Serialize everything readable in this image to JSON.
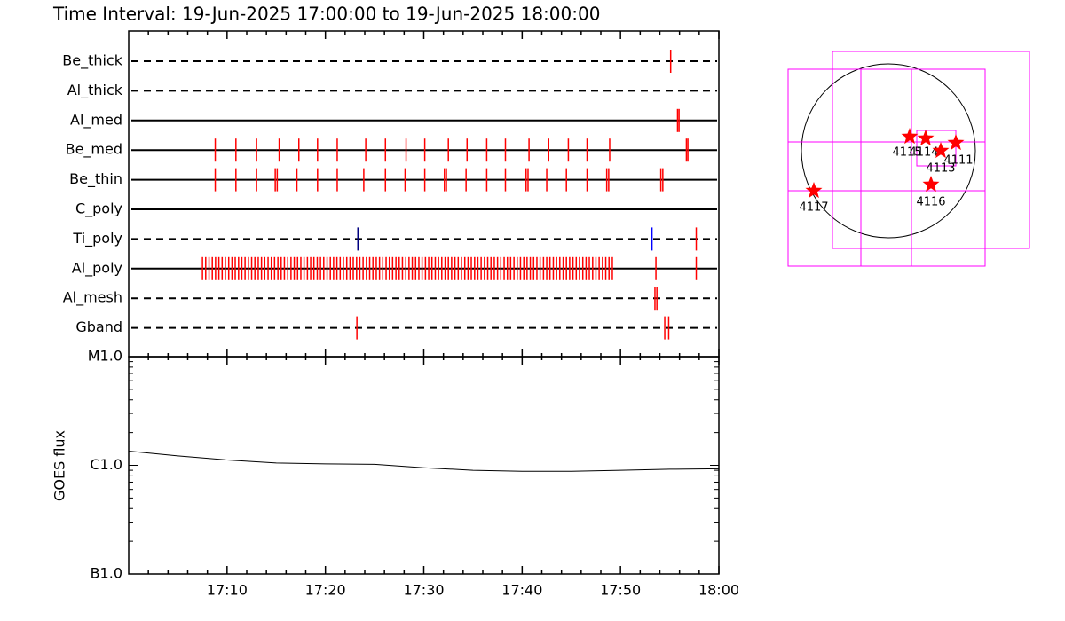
{
  "chart_data": [
    {
      "type": "timeline",
      "title": "Time Interval: 19-Jun-2025 17:00:00 to 19-Jun-2025 18:00:00",
      "xlim": [
        0,
        60
      ],
      "color": "#ff0000",
      "series": [
        {
          "name": "Be_thick",
          "line": "dashed",
          "values": [
            55.1
          ]
        },
        {
          "name": "Al_thick",
          "line": "dashed",
          "values": []
        },
        {
          "name": "Al_med",
          "line": "solid",
          "values": [
            55.8,
            55.95
          ]
        },
        {
          "name": "Be_med",
          "line": "solid",
          "values": [
            8.8,
            10.9,
            13.0,
            15.3,
            17.3,
            19.2,
            21.2,
            24.1,
            26.1,
            28.2,
            30.1,
            32.5,
            34.4,
            36.4,
            38.3,
            40.7,
            42.7,
            44.7,
            46.6,
            48.9,
            56.7,
            56.85
          ]
        },
        {
          "name": "Be_thin",
          "line": "solid",
          "values": [
            8.8,
            10.9,
            13.0,
            14.9,
            15.1,
            17.1,
            19.2,
            21.2,
            23.9,
            26.1,
            28.1,
            30.1,
            32.1,
            32.3,
            34.3,
            36.4,
            38.3,
            40.4,
            40.6,
            42.5,
            44.5,
            46.6,
            48.6,
            48.8,
            54.1,
            54.3
          ]
        },
        {
          "name": "C_poly",
          "line": "solid",
          "values": []
        },
        {
          "name": "Ti_poly",
          "line": "dashed",
          "values": [
            23.3,
            53.2,
            57.7
          ],
          "colors": [
            "#000080",
            "#0000ff",
            "#ff0000"
          ]
        },
        {
          "name": "Al_poly",
          "line": "solid",
          "values": [
            7.5,
            7.83,
            8.17,
            8.5,
            8.83,
            9.17,
            9.5,
            9.83,
            10.17,
            10.5,
            10.83,
            11.17,
            11.5,
            11.83,
            12.17,
            12.5,
            12.83,
            13.17,
            13.5,
            13.83,
            14.17,
            14.5,
            14.83,
            15.17,
            15.5,
            15.83,
            16.17,
            16.5,
            16.83,
            17.17,
            17.5,
            17.83,
            18.17,
            18.5,
            18.83,
            19.17,
            19.5,
            19.83,
            20.17,
            20.5,
            20.83,
            21.17,
            21.5,
            21.83,
            22.17,
            22.5,
            22.83,
            23.17,
            23.5,
            23.83,
            24.17,
            24.5,
            24.83,
            25.17,
            25.5,
            25.83,
            26.17,
            26.5,
            26.83,
            27.17,
            27.5,
            27.83,
            28.17,
            28.5,
            28.83,
            29.17,
            29.5,
            29.83,
            30.17,
            30.5,
            30.83,
            31.17,
            31.5,
            31.83,
            32.17,
            32.5,
            32.83,
            33.17,
            33.5,
            33.83,
            34.17,
            34.5,
            34.83,
            35.17,
            35.5,
            35.83,
            36.17,
            36.5,
            36.83,
            37.17,
            37.5,
            37.83,
            38.17,
            38.5,
            38.83,
            39.17,
            39.5,
            39.83,
            40.17,
            40.5,
            40.83,
            41.17,
            41.5,
            41.83,
            42.17,
            42.5,
            42.83,
            43.17,
            43.5,
            43.83,
            44.17,
            44.5,
            44.83,
            45.17,
            45.5,
            45.83,
            46.17,
            46.5,
            46.83,
            47.17,
            47.5,
            47.83,
            48.17,
            48.5,
            48.83,
            49.17,
            53.6,
            57.7
          ]
        },
        {
          "name": "Al_mesh",
          "line": "dashed",
          "values": [
            53.5,
            53.7
          ]
        },
        {
          "name": "Gband",
          "line": "dashed",
          "values": [
            23.2,
            54.5,
            54.9
          ]
        }
      ]
    },
    {
      "type": "line",
      "ylabel": "GOES flux",
      "log_scale": true,
      "color": "#000000",
      "xlim": [
        0,
        60
      ],
      "xticks": [
        {
          "value": 10,
          "label": "17:10"
        },
        {
          "value": 20,
          "label": "17:20"
        },
        {
          "value": 30,
          "label": "17:30"
        },
        {
          "value": 40,
          "label": "17:40"
        },
        {
          "value": 50,
          "label": "17:50"
        },
        {
          "value": 60,
          "label": "18:00"
        }
      ],
      "x_minor_ticks": [
        2,
        4,
        6,
        8,
        12,
        14,
        16,
        18,
        22,
        24,
        26,
        28,
        32,
        34,
        36,
        38,
        42,
        44,
        46,
        48,
        52,
        54,
        56,
        58
      ],
      "ylim": [
        1e-07,
        1e-05
      ],
      "yticks": [
        {
          "value": 1e-05,
          "label": "M1.0"
        },
        {
          "value": 1e-06,
          "label": "C1.0"
        },
        {
          "value": 1e-07,
          "label": "B1.0"
        }
      ],
      "y_minor_ticks": [
        2e-07,
        3e-07,
        4e-07,
        5e-07,
        6e-07,
        7e-07,
        8e-07,
        9e-07,
        2e-06,
        3e-06,
        4e-06,
        5e-06,
        6e-06,
        7e-06,
        8e-06,
        9e-06
      ],
      "x": [
        0,
        5,
        10,
        15,
        20,
        25,
        30,
        35,
        40,
        45,
        50,
        55,
        60
      ],
      "values": [
        1.35e-06,
        1.22e-06,
        1.12e-06,
        1.05e-06,
        1.03e-06,
        1.02e-06,
        9.5e-07,
        9e-07,
        8.8e-07,
        8.8e-07,
        9e-07,
        9.2e-07,
        9.3e-07
      ]
    }
  ],
  "map": {
    "box_color": "#ff00ff",
    "star_color": "#ff0000",
    "regions": [
      {
        "label": "4115"
      },
      {
        "label": "4114"
      },
      {
        "label": "4113"
      },
      {
        "label": "4111"
      },
      {
        "label": "4116"
      },
      {
        "label": "4117"
      }
    ]
  }
}
